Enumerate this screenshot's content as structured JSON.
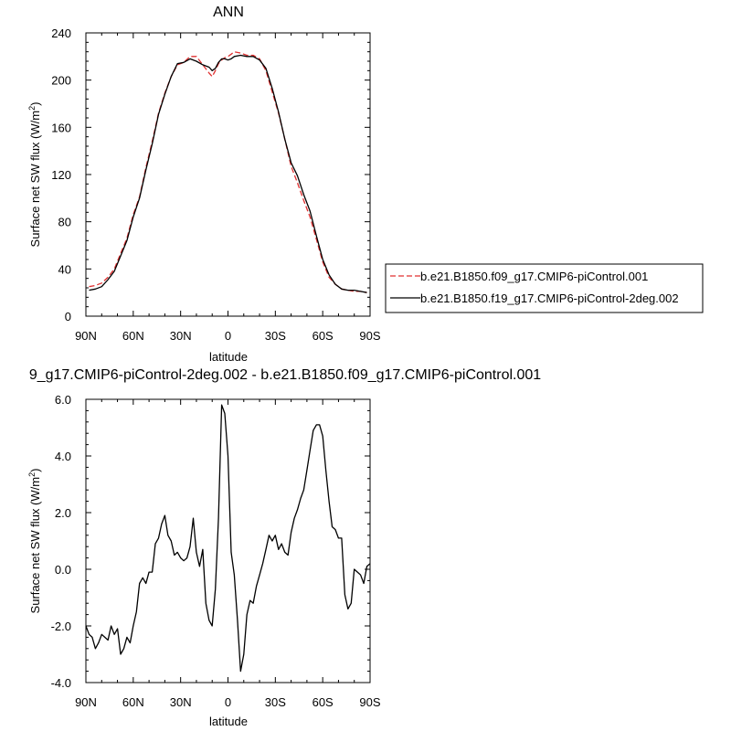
{
  "chart_data": [
    {
      "type": "line",
      "title": "ANN",
      "xlabel": "latitude",
      "ylabel": "Surface net SW flux (W/m",
      "ylabel_sup": "2",
      "ylabel_close": ")",
      "xlim": [
        90,
        -90
      ],
      "ylim": [
        0,
        240
      ],
      "x_ticks": [
        90,
        60,
        30,
        0,
        -30,
        -60,
        -90
      ],
      "x_tick_labels": [
        "90N",
        "60N",
        "30N",
        "0",
        "30S",
        "60S",
        "90S"
      ],
      "y_ticks": [
        0,
        40,
        80,
        120,
        160,
        200,
        240
      ],
      "y_tick_labels": [
        "0",
        "40",
        "80",
        "120",
        "160",
        "200",
        "240"
      ],
      "legend_position": "right",
      "series": [
        {
          "name": "b.e21.B1850.f09_g17.CMIP6-piControl.001",
          "color": "#e03030",
          "dash": "dashed",
          "x": [
            88,
            84,
            80,
            76,
            72,
            68,
            64,
            60,
            56,
            52,
            48,
            44,
            40,
            36,
            32,
            28,
            24,
            20,
            16,
            12,
            10,
            8,
            6,
            4,
            2,
            0,
            -2,
            -4,
            -8,
            -12,
            -16,
            -20,
            -24,
            -28,
            -32,
            -36,
            -40,
            -44,
            -48,
            -52,
            -56,
            -60,
            -64,
            -68,
            -72,
            -76,
            -80,
            -84,
            -88
          ],
          "y": [
            25,
            26,
            28,
            33,
            40,
            53,
            66,
            86,
            101,
            126,
            148,
            172,
            189,
            203,
            213,
            215,
            220,
            220,
            213,
            206,
            203,
            208,
            214,
            217,
            219,
            220,
            222,
            224,
            223,
            221,
            221,
            218,
            208,
            190,
            172,
            150,
            127,
            113,
            98,
            84,
            65,
            46,
            33,
            27,
            23,
            22,
            21,
            21,
            20
          ]
        },
        {
          "name": "b.e21.B1850.f19_g17.CMIP6-piControl-2deg.002",
          "color": "#000000",
          "dash": "solid",
          "x": [
            88,
            84,
            80,
            76,
            72,
            68,
            64,
            60,
            56,
            52,
            48,
            44,
            40,
            36,
            32,
            28,
            24,
            20,
            16,
            12,
            10,
            8,
            6,
            4,
            2,
            0,
            -2,
            -4,
            -8,
            -12,
            -16,
            -20,
            -24,
            -28,
            -32,
            -36,
            -40,
            -44,
            -48,
            -52,
            -56,
            -60,
            -64,
            -68,
            -72,
            -76,
            -80,
            -84,
            -88
          ],
          "y": [
            22,
            23,
            25,
            31,
            38,
            51,
            64,
            84,
            100,
            124,
            146,
            171,
            188,
            203,
            214,
            215,
            218,
            216,
            213,
            211,
            208,
            210,
            215,
            218,
            218,
            217,
            218,
            220,
            221,
            220,
            220,
            217,
            210,
            193,
            173,
            150,
            130,
            119,
            103,
            89,
            68,
            48,
            35,
            27,
            23,
            22,
            22,
            21,
            20
          ]
        }
      ]
    },
    {
      "type": "line",
      "title": "9_g17.CMIP6-piControl-2deg.002 - b.e21.B1850.f09_g17.CMIP6-piControl.001",
      "xlabel": "latitude",
      "ylabel": "Surface net SW flux (W/m",
      "ylabel_sup": "2",
      "ylabel_close": ")",
      "xlim": [
        90,
        -90
      ],
      "ylim": [
        -4.0,
        6.0
      ],
      "x_ticks": [
        90,
        60,
        30,
        0,
        -30,
        -60,
        -90
      ],
      "x_tick_labels": [
        "90N",
        "60N",
        "30N",
        "0",
        "30S",
        "60S",
        "90S"
      ],
      "y_ticks": [
        -4.0,
        -2.0,
        0.0,
        2.0,
        4.0,
        6.0
      ],
      "y_tick_labels": [
        "-4.0",
        "-2.0",
        "0.0",
        "2.0",
        "4.0",
        "6.0"
      ],
      "series": [
        {
          "color": "#000000",
          "x": [
            90,
            88,
            86,
            84,
            82,
            80,
            78,
            76,
            74,
            72,
            70,
            68,
            66,
            64,
            62,
            60,
            58,
            56,
            54,
            52,
            50,
            48,
            46,
            44,
            42,
            40,
            38,
            36,
            34,
            32,
            30,
            28,
            26,
            24,
            22,
            20,
            18,
            16,
            14,
            12,
            10,
            8,
            6,
            4,
            2,
            0,
            -2,
            -4,
            -6,
            -8,
            -10,
            -12,
            -14,
            -16,
            -18,
            -20,
            -22,
            -24,
            -26,
            -28,
            -30,
            -32,
            -34,
            -36,
            -38,
            -40,
            -42,
            -44,
            -46,
            -48,
            -50,
            -52,
            -54,
            -56,
            -58,
            -60,
            -62,
            -64,
            -66,
            -68,
            -70,
            -72,
            -74,
            -76,
            -78,
            -80,
            -82,
            -84,
            -86,
            -88,
            -90
          ],
          "y": [
            -2.0,
            -2.3,
            -2.4,
            -2.8,
            -2.6,
            -2.3,
            -2.4,
            -2.5,
            -2.0,
            -2.3,
            -2.1,
            -3.0,
            -2.8,
            -2.4,
            -2.6,
            -2.0,
            -1.5,
            -0.5,
            -0.3,
            -0.5,
            -0.1,
            -0.1,
            0.9,
            1.1,
            1.6,
            1.9,
            1.2,
            1.0,
            0.5,
            0.6,
            0.4,
            0.3,
            0.4,
            0.8,
            1.8,
            0.6,
            0.1,
            0.7,
            -1.2,
            -1.8,
            -2.0,
            -0.7,
            1.8,
            5.8,
            5.5,
            4.0,
            0.6,
            -0.2,
            -1.8,
            -3.6,
            -3.0,
            -1.6,
            -1.1,
            -1.2,
            -0.6,
            -0.2,
            0.2,
            0.7,
            1.2,
            1.0,
            1.2,
            0.7,
            0.9,
            0.6,
            0.5,
            1.3,
            1.8,
            2.1,
            2.5,
            2.8,
            3.5,
            4.2,
            4.9,
            5.1,
            5.1,
            4.7,
            3.5,
            2.4,
            1.5,
            1.4,
            1.1,
            1.1,
            -0.9,
            -1.4,
            -1.2,
            0.0,
            -0.1,
            -0.2,
            -0.5,
            0.1,
            0.2
          ]
        }
      ]
    }
  ]
}
